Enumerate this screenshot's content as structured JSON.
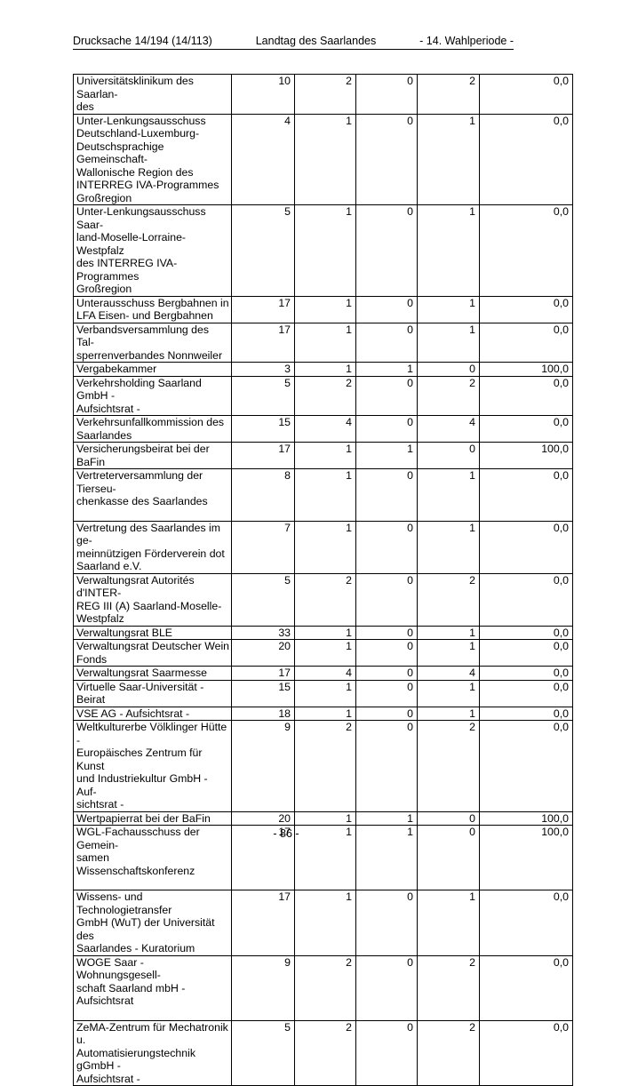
{
  "document": {
    "header": {
      "left": "Drucksache 14/194 (14/113)",
      "center": "Landtag des Saarlandes",
      "right": "- 14. Wahlperiode -"
    },
    "page_number": "- 86 -"
  },
  "table": {
    "rows": [
      {
        "name": "Universitätsklinikum des Saarlan-\ndes",
        "values": [
          "10",
          "2",
          "0",
          "2",
          "0,0"
        ],
        "extra_space": false
      },
      {
        "name": "Unter-Lenkungsausschuss\nDeutschland-Luxemburg-\nDeutschsprachige Gemeinschaft-\nWallonische Region des\nINTERREG IVA-Programmes\nGroßregion",
        "values": [
          "4",
          "1",
          "0",
          "1",
          "0,0"
        ],
        "extra_space": false
      },
      {
        "name": "Unter-Lenkungsausschuss Saar-\nland-Moselle-Lorraine-Westpfalz\ndes INTERREG IVA-Programmes\nGroßregion",
        "values": [
          "5",
          "1",
          "0",
          "1",
          "0,0"
        ],
        "extra_space": false
      },
      {
        "name": "Unterausschuss Bergbahnen in\nLFA Eisen- und Bergbahnen",
        "values": [
          "17",
          "1",
          "0",
          "1",
          "0,0"
        ],
        "extra_space": false
      },
      {
        "name": "Verbandsversammlung des Tal-\nsperrenverbandes Nonnweiler",
        "values": [
          "17",
          "1",
          "0",
          "1",
          "0,0"
        ],
        "extra_space": false
      },
      {
        "name": "Vergabekammer",
        "values": [
          "3",
          "1",
          "1",
          "0",
          "100,0"
        ],
        "extra_space": false
      },
      {
        "name": "Verkehrsholding Saarland GmbH -\nAufsichtsrat -",
        "values": [
          "5",
          "2",
          "0",
          "2",
          "0,0"
        ],
        "extra_space": false
      },
      {
        "name": "Verkehrsunfallkommission des\nSaarlandes",
        "values": [
          "15",
          "4",
          "0",
          "4",
          "0,0"
        ],
        "extra_space": false
      },
      {
        "name": "Versicherungsbeirat bei der BaFin",
        "values": [
          "17",
          "1",
          "1",
          "0",
          "100,0"
        ],
        "extra_space": false
      },
      {
        "name": "Vertreterversammlung der Tierseu-\nchenkasse des Saarlandes",
        "values": [
          "8",
          "1",
          "0",
          "1",
          "0,0"
        ],
        "extra_space": true
      },
      {
        "name": "Vertretung des Saarlandes im ge-\nmeinnützigen Förderverein dot\nSaarland e.V.",
        "values": [
          "7",
          "1",
          "0",
          "1",
          "0,0"
        ],
        "extra_space": false
      },
      {
        "name": "Verwaltungsrat Autorités d'INTER-\nREG III (A) Saarland-Moselle-\nWestpfalz",
        "values": [
          "5",
          "2",
          "0",
          "2",
          "0,0"
        ],
        "extra_space": false
      },
      {
        "name": "Verwaltungsrat BLE",
        "values": [
          "33",
          "1",
          "0",
          "1",
          "0,0"
        ],
        "extra_space": false
      },
      {
        "name": "Verwaltungsrat Deutscher Wein\nFonds",
        "values": [
          "20",
          "1",
          "0",
          "1",
          "0,0"
        ],
        "extra_space": false
      },
      {
        "name": "Verwaltungsrat Saarmesse",
        "values": [
          "17",
          "4",
          "0",
          "4",
          "0,0"
        ],
        "extra_space": false
      },
      {
        "name": "Virtuelle Saar-Universität - Beirat",
        "values": [
          "15",
          "1",
          "0",
          "1",
          "0,0"
        ],
        "extra_space": false
      },
      {
        "name": "VSE AG - Aufsichtsrat -",
        "values": [
          "18",
          "1",
          "0",
          "1",
          "0,0"
        ],
        "extra_space": false
      },
      {
        "name": "Weltkulturerbe Völklinger Hütte -\nEuropäisches Zentrum für Kunst\nund Industriekultur GmbH - Auf-\nsichtsrat -",
        "values": [
          "9",
          "2",
          "0",
          "2",
          "0,0"
        ],
        "extra_space": false
      },
      {
        "name": "Wertpapierrat bei der BaFin",
        "values": [
          "20",
          "1",
          "1",
          "0",
          "100,0"
        ],
        "extra_space": false
      },
      {
        "name": "WGL-Fachausschuss der Gemein-\nsamen Wissenschaftskonferenz",
        "values": [
          "17",
          "1",
          "1",
          "0",
          "100,0"
        ],
        "extra_space": true
      },
      {
        "name": "Wissens- und Technologietransfer\nGmbH (WuT) der Universität des\nSaarlandes - Kuratorium",
        "values": [
          "17",
          "1",
          "0",
          "1",
          "0,0"
        ],
        "extra_space": false
      },
      {
        "name": "WOGE Saar - Wohnungsgesell-\nschaft Saarland mbH - Aufsichtsrat",
        "values": [
          "9",
          "2",
          "0",
          "2",
          "0,0"
        ],
        "extra_space": true
      },
      {
        "name": "ZeMA-Zentrum für Mechatronik u.\nAutomatisierungstechnik gGmbH -\nAufsichtsrat -",
        "values": [
          "5",
          "2",
          "0",
          "2",
          "0,0"
        ],
        "extra_space": false
      }
    ]
  }
}
